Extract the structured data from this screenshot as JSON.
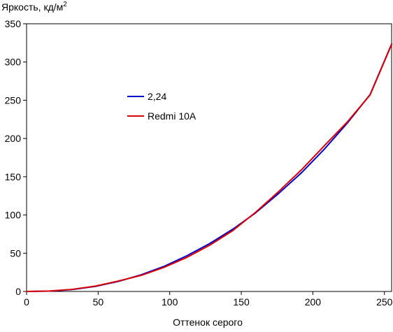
{
  "chart_data": {
    "type": "line",
    "ylabel": "Яркость, кд/м",
    "ylabel_superscript": "2",
    "xlabel": "Оттенок серого",
    "xlim": [
      0,
      255
    ],
    "ylim": [
      0,
      350
    ],
    "x_ticks": [
      "0",
      "50",
      "100",
      "150",
      "200",
      "250"
    ],
    "y_ticks": [
      "0",
      "50",
      "100",
      "150",
      "200",
      "250",
      "300",
      "350"
    ],
    "grid": false,
    "legend_position": "upper-left-inside",
    "series": [
      {
        "name": "2,24",
        "color": "#0000cc",
        "x": [
          0,
          16,
          32,
          48,
          64,
          80,
          96,
          112,
          128,
          144,
          160,
          176,
          192,
          208,
          224,
          240,
          255
        ],
        "y": [
          0,
          0.5,
          2.5,
          6.6,
          13.1,
          21.7,
          32.8,
          46.7,
          62.7,
          81.3,
          102.8,
          128.0,
          155.1,
          186.0,
          220.0,
          257.5,
          323.5
        ]
      },
      {
        "name": "Redmi 10A",
        "color": "#dd0000",
        "x": [
          0,
          16,
          32,
          48,
          64,
          80,
          96,
          112,
          128,
          144,
          160,
          176,
          192,
          208,
          224,
          240,
          255
        ],
        "y": [
          0,
          0.6,
          2.8,
          7.0,
          13.6,
          21.0,
          31.5,
          44.5,
          60.5,
          79.5,
          103.5,
          130.5,
          159.0,
          190.5,
          221.5,
          257.0,
          323.0
        ]
      }
    ]
  }
}
